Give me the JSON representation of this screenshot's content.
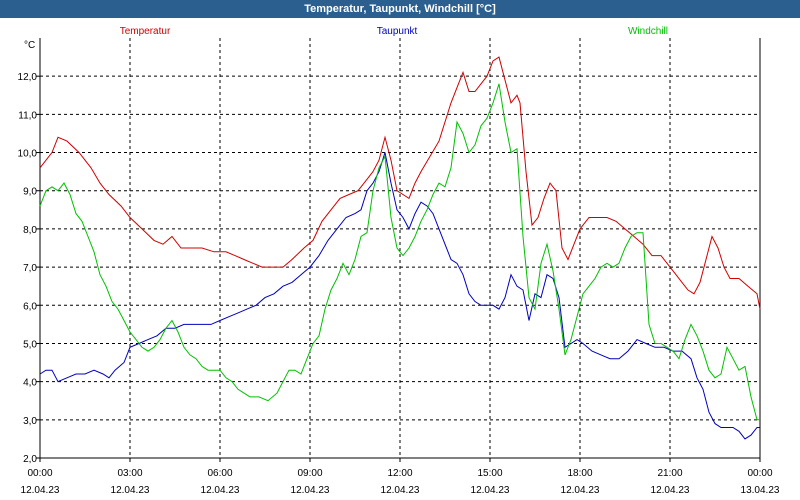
{
  "window": {
    "title": "Temperatur, Taupunkt, Windchill [°C]"
  },
  "chart_data": {
    "type": "line",
    "title": "Temperatur, Taupunkt, Windchill [°C]",
    "ylabel": "°C",
    "ylim": [
      2.0,
      13.0
    ],
    "yticks": [
      "2,0",
      "3,0",
      "4,0",
      "5,0",
      "6,0",
      "7,0",
      "8,0",
      "9,0",
      "10,0",
      "11,0",
      "12,0"
    ],
    "xlim": [
      0,
      24
    ],
    "xticks": [
      {
        "hour": 0,
        "time": "00:00",
        "date": "12.04.23"
      },
      {
        "hour": 3,
        "time": "03:00",
        "date": "12.04.23"
      },
      {
        "hour": 6,
        "time": "06:00",
        "date": "12.04.23"
      },
      {
        "hour": 9,
        "time": "09:00",
        "date": "12.04.23"
      },
      {
        "hour": 12,
        "time": "12:00",
        "date": "12.04.23"
      },
      {
        "hour": 15,
        "time": "15:00",
        "date": "12.04.23"
      },
      {
        "hour": 18,
        "time": "18:00",
        "date": "12.04.23"
      },
      {
        "hour": 21,
        "time": "21:00",
        "date": "12.04.23"
      },
      {
        "hour": 24,
        "time": "00:00",
        "date": "13.04.23"
      }
    ],
    "grid": true,
    "series": [
      {
        "name": "Temperatur",
        "color": "#d00000",
        "points": [
          [
            0,
            9.6
          ],
          [
            0.4,
            10.0
          ],
          [
            0.6,
            10.4
          ],
          [
            0.9,
            10.3
          ],
          [
            1.3,
            10.0
          ],
          [
            1.7,
            9.6
          ],
          [
            2.0,
            9.2
          ],
          [
            2.3,
            8.9
          ],
          [
            2.7,
            8.6
          ],
          [
            3.0,
            8.3
          ],
          [
            3.4,
            8.0
          ],
          [
            3.8,
            7.7
          ],
          [
            4.1,
            7.6
          ],
          [
            4.4,
            7.8
          ],
          [
            4.7,
            7.5
          ],
          [
            5.0,
            7.5
          ],
          [
            5.4,
            7.5
          ],
          [
            5.8,
            7.4
          ],
          [
            6.2,
            7.4
          ],
          [
            6.5,
            7.3
          ],
          [
            6.8,
            7.2
          ],
          [
            7.1,
            7.1
          ],
          [
            7.4,
            7.0
          ],
          [
            7.8,
            7.0
          ],
          [
            8.1,
            7.0
          ],
          [
            8.4,
            7.2
          ],
          [
            8.8,
            7.5
          ],
          [
            9.1,
            7.7
          ],
          [
            9.4,
            8.2
          ],
          [
            9.7,
            8.5
          ],
          [
            10.0,
            8.8
          ],
          [
            10.3,
            8.9
          ],
          [
            10.6,
            9.0
          ],
          [
            10.9,
            9.3
          ],
          [
            11.1,
            9.5
          ],
          [
            11.3,
            9.8
          ],
          [
            11.5,
            10.4
          ],
          [
            11.7,
            9.8
          ],
          [
            11.9,
            9.0
          ],
          [
            12.1,
            8.9
          ],
          [
            12.3,
            8.8
          ],
          [
            12.5,
            9.2
          ],
          [
            12.7,
            9.5
          ],
          [
            13.0,
            9.9
          ],
          [
            13.3,
            10.3
          ],
          [
            13.5,
            10.8
          ],
          [
            13.7,
            11.3
          ],
          [
            13.9,
            11.7
          ],
          [
            14.1,
            12.1
          ],
          [
            14.3,
            11.6
          ],
          [
            14.5,
            11.6
          ],
          [
            14.7,
            11.8
          ],
          [
            14.9,
            12.0
          ],
          [
            15.1,
            12.4
          ],
          [
            15.3,
            12.5
          ],
          [
            15.5,
            11.9
          ],
          [
            15.7,
            11.3
          ],
          [
            15.9,
            11.5
          ],
          [
            16.0,
            11.3
          ],
          [
            16.2,
            9.5
          ],
          [
            16.4,
            8.1
          ],
          [
            16.6,
            8.3
          ],
          [
            16.8,
            8.8
          ],
          [
            17.0,
            9.2
          ],
          [
            17.2,
            9.0
          ],
          [
            17.4,
            7.5
          ],
          [
            17.6,
            7.2
          ],
          [
            17.8,
            7.6
          ],
          [
            18.0,
            8.0
          ],
          [
            18.3,
            8.3
          ],
          [
            18.6,
            8.3
          ],
          [
            18.9,
            8.3
          ],
          [
            19.2,
            8.2
          ],
          [
            19.5,
            8.0
          ],
          [
            19.8,
            7.8
          ],
          [
            20.1,
            7.6
          ],
          [
            20.4,
            7.3
          ],
          [
            20.7,
            7.3
          ],
          [
            21.0,
            7.0
          ],
          [
            21.2,
            6.8
          ],
          [
            21.4,
            6.6
          ],
          [
            21.6,
            6.4
          ],
          [
            21.8,
            6.3
          ],
          [
            22.0,
            6.6
          ],
          [
            22.2,
            7.2
          ],
          [
            22.4,
            7.8
          ],
          [
            22.6,
            7.5
          ],
          [
            22.8,
            7.0
          ],
          [
            23.0,
            6.7
          ],
          [
            23.3,
            6.7
          ],
          [
            23.6,
            6.5
          ],
          [
            23.9,
            6.3
          ],
          [
            24.0,
            5.9
          ]
        ]
      },
      {
        "name": "Taupunkt",
        "color": "#0000c0",
        "points": [
          [
            0,
            4.2
          ],
          [
            0.2,
            4.3
          ],
          [
            0.4,
            4.3
          ],
          [
            0.6,
            4.0
          ],
          [
            0.9,
            4.1
          ],
          [
            1.2,
            4.2
          ],
          [
            1.5,
            4.2
          ],
          [
            1.8,
            4.3
          ],
          [
            2.1,
            4.2
          ],
          [
            2.3,
            4.1
          ],
          [
            2.5,
            4.3
          ],
          [
            2.8,
            4.5
          ],
          [
            3.0,
            4.9
          ],
          [
            3.3,
            5.0
          ],
          [
            3.6,
            5.1
          ],
          [
            3.9,
            5.2
          ],
          [
            4.2,
            5.4
          ],
          [
            4.5,
            5.4
          ],
          [
            4.8,
            5.5
          ],
          [
            5.1,
            5.5
          ],
          [
            5.4,
            5.5
          ],
          [
            5.7,
            5.5
          ],
          [
            6.0,
            5.6
          ],
          [
            6.3,
            5.7
          ],
          [
            6.6,
            5.8
          ],
          [
            6.9,
            5.9
          ],
          [
            7.2,
            6.0
          ],
          [
            7.5,
            6.2
          ],
          [
            7.8,
            6.3
          ],
          [
            8.1,
            6.5
          ],
          [
            8.4,
            6.6
          ],
          [
            8.7,
            6.8
          ],
          [
            9.0,
            7.0
          ],
          [
            9.3,
            7.3
          ],
          [
            9.6,
            7.7
          ],
          [
            9.9,
            8.0
          ],
          [
            10.2,
            8.3
          ],
          [
            10.5,
            8.4
          ],
          [
            10.7,
            8.5
          ],
          [
            10.9,
            9.0
          ],
          [
            11.1,
            9.2
          ],
          [
            11.3,
            9.5
          ],
          [
            11.5,
            10.0
          ],
          [
            11.7,
            9.2
          ],
          [
            11.9,
            8.5
          ],
          [
            12.1,
            8.3
          ],
          [
            12.3,
            8.0
          ],
          [
            12.5,
            8.4
          ],
          [
            12.7,
            8.7
          ],
          [
            12.9,
            8.6
          ],
          [
            13.1,
            8.4
          ],
          [
            13.3,
            8.0
          ],
          [
            13.5,
            7.6
          ],
          [
            13.7,
            7.2
          ],
          [
            13.9,
            7.1
          ],
          [
            14.1,
            6.8
          ],
          [
            14.3,
            6.3
          ],
          [
            14.5,
            6.1
          ],
          [
            14.7,
            6.0
          ],
          [
            14.9,
            6.0
          ],
          [
            15.1,
            6.0
          ],
          [
            15.3,
            5.9
          ],
          [
            15.5,
            6.2
          ],
          [
            15.7,
            6.8
          ],
          [
            15.9,
            6.5
          ],
          [
            16.1,
            6.4
          ],
          [
            16.3,
            5.6
          ],
          [
            16.5,
            6.3
          ],
          [
            16.7,
            6.2
          ],
          [
            16.9,
            6.8
          ],
          [
            17.1,
            6.7
          ],
          [
            17.3,
            6.2
          ],
          [
            17.5,
            4.9
          ],
          [
            17.7,
            5.0
          ],
          [
            17.9,
            5.1
          ],
          [
            18.1,
            5.0
          ],
          [
            18.4,
            4.8
          ],
          [
            18.7,
            4.7
          ],
          [
            19.0,
            4.6
          ],
          [
            19.3,
            4.6
          ],
          [
            19.6,
            4.8
          ],
          [
            19.9,
            5.1
          ],
          [
            20.2,
            5.0
          ],
          [
            20.5,
            4.9
          ],
          [
            20.8,
            4.9
          ],
          [
            21.1,
            4.8
          ],
          [
            21.4,
            4.8
          ],
          [
            21.7,
            4.6
          ],
          [
            21.9,
            4.1
          ],
          [
            22.1,
            3.8
          ],
          [
            22.3,
            3.2
          ],
          [
            22.5,
            2.9
          ],
          [
            22.7,
            2.8
          ],
          [
            22.9,
            2.8
          ],
          [
            23.1,
            2.8
          ],
          [
            23.3,
            2.7
          ],
          [
            23.5,
            2.5
          ],
          [
            23.7,
            2.6
          ],
          [
            23.9,
            2.8
          ],
          [
            24.0,
            2.8
          ]
        ]
      },
      {
        "name": "Windchill",
        "color": "#00c000",
        "points": [
          [
            0,
            8.6
          ],
          [
            0.2,
            9.0
          ],
          [
            0.4,
            9.1
          ],
          [
            0.6,
            9.0
          ],
          [
            0.8,
            9.2
          ],
          [
            1.0,
            8.9
          ],
          [
            1.2,
            8.4
          ],
          [
            1.4,
            8.2
          ],
          [
            1.6,
            7.8
          ],
          [
            1.8,
            7.4
          ],
          [
            2.0,
            6.8
          ],
          [
            2.2,
            6.5
          ],
          [
            2.4,
            6.1
          ],
          [
            2.6,
            5.9
          ],
          [
            2.8,
            5.6
          ],
          [
            3.0,
            5.3
          ],
          [
            3.2,
            5.1
          ],
          [
            3.4,
            4.9
          ],
          [
            3.6,
            4.8
          ],
          [
            3.8,
            4.9
          ],
          [
            4.0,
            5.1
          ],
          [
            4.2,
            5.4
          ],
          [
            4.4,
            5.6
          ],
          [
            4.6,
            5.3
          ],
          [
            4.8,
            4.9
          ],
          [
            5.0,
            4.7
          ],
          [
            5.2,
            4.6
          ],
          [
            5.4,
            4.4
          ],
          [
            5.6,
            4.3
          ],
          [
            5.8,
            4.3
          ],
          [
            6.0,
            4.3
          ],
          [
            6.2,
            4.1
          ],
          [
            6.4,
            4.0
          ],
          [
            6.6,
            3.8
          ],
          [
            6.8,
            3.7
          ],
          [
            7.0,
            3.6
          ],
          [
            7.3,
            3.6
          ],
          [
            7.6,
            3.5
          ],
          [
            7.9,
            3.7
          ],
          [
            8.1,
            4.0
          ],
          [
            8.3,
            4.3
          ],
          [
            8.5,
            4.3
          ],
          [
            8.7,
            4.2
          ],
          [
            8.9,
            4.6
          ],
          [
            9.1,
            5.0
          ],
          [
            9.3,
            5.2
          ],
          [
            9.5,
            5.9
          ],
          [
            9.7,
            6.4
          ],
          [
            9.9,
            6.7
          ],
          [
            10.1,
            7.1
          ],
          [
            10.3,
            6.8
          ],
          [
            10.5,
            7.2
          ],
          [
            10.7,
            7.8
          ],
          [
            10.9,
            7.9
          ],
          [
            11.1,
            9.0
          ],
          [
            11.3,
            9.6
          ],
          [
            11.5,
            9.9
          ],
          [
            11.7,
            8.3
          ],
          [
            11.9,
            7.5
          ],
          [
            12.1,
            7.3
          ],
          [
            12.3,
            7.5
          ],
          [
            12.5,
            7.8
          ],
          [
            12.7,
            8.2
          ],
          [
            12.9,
            8.5
          ],
          [
            13.1,
            8.9
          ],
          [
            13.3,
            9.2
          ],
          [
            13.5,
            9.1
          ],
          [
            13.7,
            9.6
          ],
          [
            13.9,
            10.8
          ],
          [
            14.1,
            10.5
          ],
          [
            14.3,
            10.0
          ],
          [
            14.5,
            10.2
          ],
          [
            14.7,
            10.7
          ],
          [
            14.9,
            10.9
          ],
          [
            15.1,
            11.3
          ],
          [
            15.3,
            11.8
          ],
          [
            15.5,
            10.8
          ],
          [
            15.7,
            10.0
          ],
          [
            15.9,
            10.1
          ],
          [
            16.1,
            7.8
          ],
          [
            16.3,
            6.2
          ],
          [
            16.5,
            5.9
          ],
          [
            16.7,
            7.1
          ],
          [
            16.9,
            7.6
          ],
          [
            17.1,
            6.9
          ],
          [
            17.3,
            5.9
          ],
          [
            17.5,
            4.7
          ],
          [
            17.7,
            5.1
          ],
          [
            17.9,
            5.7
          ],
          [
            18.1,
            6.3
          ],
          [
            18.3,
            6.5
          ],
          [
            18.5,
            6.7
          ],
          [
            18.7,
            7.0
          ],
          [
            18.9,
            7.1
          ],
          [
            19.1,
            7.0
          ],
          [
            19.3,
            7.1
          ],
          [
            19.5,
            7.5
          ],
          [
            19.7,
            7.8
          ],
          [
            19.9,
            7.9
          ],
          [
            20.1,
            7.9
          ],
          [
            20.3,
            5.5
          ],
          [
            20.5,
            5.0
          ],
          [
            20.7,
            5.0
          ],
          [
            20.9,
            4.9
          ],
          [
            21.1,
            4.8
          ],
          [
            21.3,
            4.6
          ],
          [
            21.5,
            5.1
          ],
          [
            21.7,
            5.5
          ],
          [
            21.9,
            5.2
          ],
          [
            22.1,
            4.8
          ],
          [
            22.3,
            4.3
          ],
          [
            22.5,
            4.1
          ],
          [
            22.7,
            4.2
          ],
          [
            22.9,
            4.9
          ],
          [
            23.1,
            4.6
          ],
          [
            23.3,
            4.3
          ],
          [
            23.5,
            4.4
          ],
          [
            23.7,
            3.6
          ],
          [
            23.9,
            3.0
          ],
          [
            24.0,
            3.0
          ]
        ]
      }
    ]
  }
}
